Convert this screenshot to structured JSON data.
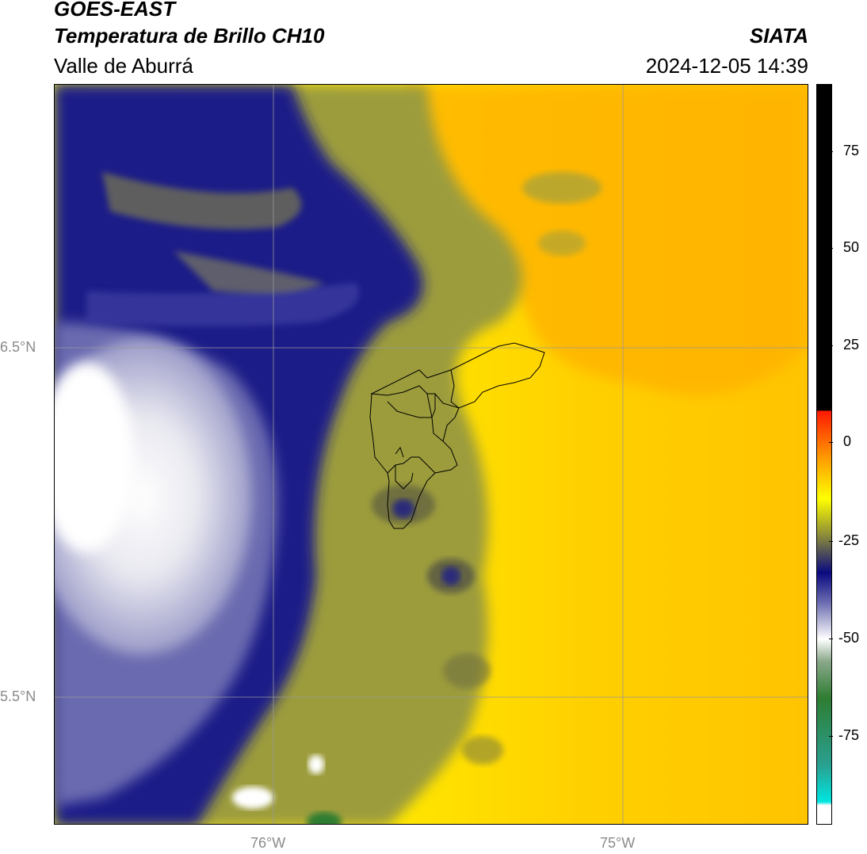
{
  "header": {
    "satellite": "GOES-EAST",
    "product": "Temperatura de Brillo CH10",
    "organization": "SIATA",
    "region": "Valle de Aburrá",
    "datetime": "2024-12-05 14:39"
  },
  "map": {
    "lat_labels": [
      "6.5°N",
      "5.5°N"
    ],
    "lon_labels": [
      "76°W",
      "75°W"
    ],
    "overlay": "Valle de Aburrá municipal boundaries",
    "gridlines": true
  },
  "colorbar": {
    "ticks": [
      "75",
      "50",
      "25",
      "0",
      "-25",
      "-50",
      "-75"
    ],
    "colors": {
      "warm_black": "#000000",
      "red": "#ff1a00",
      "orange": "#ffa500",
      "yellow": "#ffff00",
      "olive": "#8a8a3a",
      "navy": "#0a0a80",
      "white": "#ffffff",
      "green": "#2e7d32",
      "cyan": "#00e5e0"
    }
  }
}
